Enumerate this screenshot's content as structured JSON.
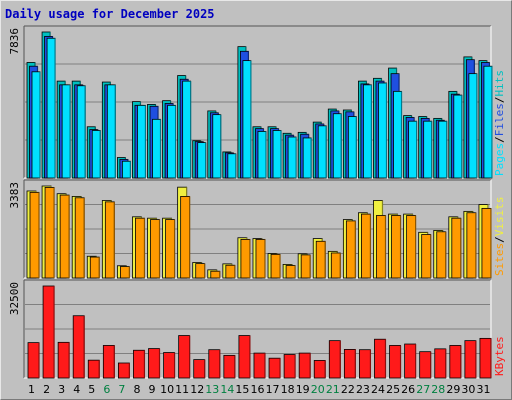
{
  "title": "Daily usage for December 2025",
  "colors": {
    "hits": "#00c0c0",
    "files": "#1f4fe0",
    "pages": "#00e0ff",
    "visits": "#f0f040",
    "sites": "#ff9a00",
    "kbytes": "#ff1a1a",
    "weekend": "#008040",
    "weekday": "#000000"
  },
  "chart_data": [
    {
      "type": "bar",
      "panel": "hits-files-pages",
      "max_label": "7836",
      "legend": [
        "Pages",
        "/",
        "Files",
        "/",
        "Hits"
      ],
      "ylim": [
        0,
        7836
      ],
      "categories": [
        "1",
        "2",
        "3",
        "4",
        "5",
        "6",
        "7",
        "8",
        "9",
        "10",
        "11",
        "12",
        "13",
        "14",
        "15",
        "16",
        "17",
        "18",
        "19",
        "20",
        "21",
        "22",
        "23",
        "24",
        "25",
        "26",
        "27",
        "28",
        "29",
        "30",
        "31"
      ],
      "series": [
        {
          "name": "Hits",
          "values": [
            6200,
            7836,
            5200,
            5200,
            2750,
            5150,
            1100,
            4100,
            3950,
            4150,
            5500,
            2000,
            3600,
            1400,
            7050,
            2750,
            2750,
            2400,
            2450,
            3000,
            3700,
            3650,
            5200,
            5350,
            5900,
            3350,
            3300,
            3200,
            4650,
            6500,
            6300
          ]
        },
        {
          "name": "Files",
          "values": [
            6000,
            7600,
            5000,
            5000,
            2600,
            5000,
            1000,
            3900,
            3850,
            4000,
            5300,
            1950,
            3500,
            1350,
            6800,
            2650,
            2650,
            2300,
            2350,
            2900,
            3600,
            3550,
            5050,
            5200,
            5600,
            3250,
            3200,
            3100,
            4500,
            6350,
            6200
          ]
        },
        {
          "name": "Pages",
          "values": [
            5700,
            7500,
            5000,
            4950,
            2550,
            5000,
            900,
            3900,
            3150,
            3900,
            5200,
            1900,
            3400,
            1300,
            6300,
            2500,
            2550,
            2200,
            2150,
            2800,
            3450,
            3300,
            5000,
            5100,
            4650,
            3050,
            3050,
            3050,
            4450,
            5600,
            6000
          ]
        }
      ]
    },
    {
      "type": "bar",
      "panel": "visits-sites",
      "max_label": "3383",
      "legend": [
        "Sites",
        "/",
        "Visits"
      ],
      "ylim": [
        0,
        3383
      ],
      "categories": [
        "1",
        "2",
        "3",
        "4",
        "5",
        "6",
        "7",
        "8",
        "9",
        "10",
        "11",
        "12",
        "13",
        "14",
        "15",
        "16",
        "17",
        "18",
        "19",
        "20",
        "21",
        "22",
        "23",
        "24",
        "25",
        "26",
        "27",
        "28",
        "29",
        "30",
        "31"
      ],
      "series": [
        {
          "name": "Visits",
          "values": [
            3200,
            3383,
            3100,
            3000,
            800,
            2850,
            450,
            2250,
            2200,
            2200,
            3340,
            570,
            300,
            520,
            1480,
            1450,
            900,
            500,
            890,
            1450,
            980,
            2150,
            2400,
            2850,
            2350,
            2350,
            1680,
            1750,
            2250,
            2450,
            2700
          ]
        },
        {
          "name": "Sites",
          "values": [
            3150,
            3330,
            3050,
            2950,
            770,
            2800,
            420,
            2200,
            2150,
            2150,
            3000,
            530,
            250,
            470,
            1420,
            1420,
            870,
            460,
            850,
            1350,
            920,
            2100,
            2350,
            2300,
            2300,
            2300,
            1600,
            1700,
            2200,
            2400,
            2560
          ]
        }
      ]
    },
    {
      "type": "bar",
      "panel": "kbytes",
      "max_label": "32500",
      "legend": [
        "KBytes"
      ],
      "ylim": [
        0,
        32500
      ],
      "categories": [
        "1",
        "2",
        "3",
        "4",
        "5",
        "6",
        "7",
        "8",
        "9",
        "10",
        "11",
        "12",
        "13",
        "14",
        "15",
        "16",
        "17",
        "18",
        "19",
        "20",
        "21",
        "22",
        "23",
        "24",
        "25",
        "26",
        "27",
        "28",
        "29",
        "30",
        "31"
      ],
      "series": [
        {
          "name": "KBytes",
          "values": [
            12500,
            32500,
            12600,
            22000,
            6300,
            11500,
            5300,
            9800,
            10400,
            9000,
            15000,
            6500,
            10000,
            8000,
            15000,
            8800,
            7000,
            8300,
            8800,
            6200,
            13200,
            10100,
            10000,
            13700,
            11500,
            12000,
            9300,
            10300,
            11500,
            13200,
            14000
          ]
        }
      ]
    }
  ],
  "weekend_days": [
    6,
    7,
    13,
    14,
    20,
    21,
    27,
    28
  ]
}
